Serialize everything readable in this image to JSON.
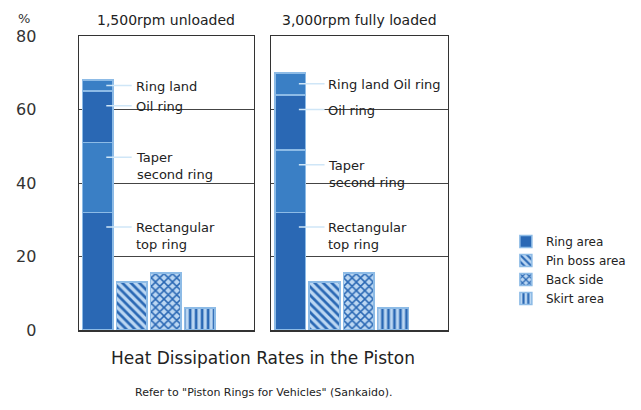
{
  "title": "Heat Dissipation Rates in the Piston",
  "note": "Refer to \"Piston Rings for Vehicles\" (Sankaido).",
  "chart_data": [
    {
      "type": "bar",
      "title": "1,500rpm unloaded",
      "ylabel": "%",
      "categories": [
        "Ring area",
        "Pin boss area",
        "Back side",
        "Skirt area"
      ],
      "stacked": true,
      "grid": true,
      "tick_labels": "y",
      "ylim": [
        0,
        80
      ],
      "yticks": [
        0,
        20,
        40,
        60,
        80
      ],
      "series": [
        {
          "name": "Rectangular\ntop ring",
          "values": [
            32,
            null,
            null,
            null
          ],
          "color": "#2a68b4",
          "marker": "solid"
        },
        {
          "name": "Taper\nsecond ring",
          "values": [
            19,
            null,
            null,
            null
          ],
          "color": "#3a7fc5",
          "marker": "solid"
        },
        {
          "name": "Oil ring",
          "values": [
            14,
            null,
            null,
            null
          ],
          "color": "#2a68b4",
          "marker": "solid"
        },
        {
          "name": "Ring land",
          "values": [
            3,
            null,
            null,
            null
          ],
          "color": "#3a7fc5",
          "marker": "solid"
        },
        {
          "values": [
            null,
            13,
            null,
            null
          ],
          "color": "#2a68b4",
          "marker": "diagonal"
        },
        {
          "values": [
            null,
            null,
            15.5,
            null
          ],
          "color": "#2a68b4",
          "marker": "crosshatch"
        },
        {
          "values": [
            null,
            null,
            null,
            6
          ],
          "color": "#2a68b4",
          "marker": "vertical"
        }
      ]
    },
    {
      "type": "bar",
      "title": "3,000rpm fully loaded",
      "categories": [
        "Ring area",
        "Pin boss area",
        "Back side",
        "Skirt area"
      ],
      "stacked": true,
      "grid": true,
      "tick_labels": false,
      "ylim": [
        0,
        80
      ],
      "yticks": [
        0,
        20,
        40,
        60,
        80
      ],
      "series": [
        {
          "name": "Rectangular\ntop ring",
          "values": [
            32,
            null,
            null,
            null
          ],
          "color": "#2a68b4",
          "marker": "solid"
        },
        {
          "name": "Taper\nsecond ring",
          "values": [
            17,
            null,
            null,
            null
          ],
          "color": "#3a7fc5",
          "marker": "solid"
        },
        {
          "name": "Oil ring",
          "values": [
            15,
            null,
            null,
            null
          ],
          "color": "#2a68b4",
          "marker": "solid"
        },
        {
          "name": "Ring land Oil ring",
          "values": [
            6,
            null,
            null,
            null
          ],
          "color": "#3a7fc5",
          "marker": "solid"
        },
        {
          "values": [
            null,
            13,
            null,
            null
          ],
          "color": "#2a68b4",
          "marker": "diagonal"
        },
        {
          "values": [
            null,
            null,
            15.5,
            null
          ],
          "color": "#2a68b4",
          "marker": "crosshatch"
        },
        {
          "values": [
            null,
            null,
            null,
            6
          ],
          "color": "#2a68b4",
          "marker": "vertical"
        }
      ]
    }
  ]
}
